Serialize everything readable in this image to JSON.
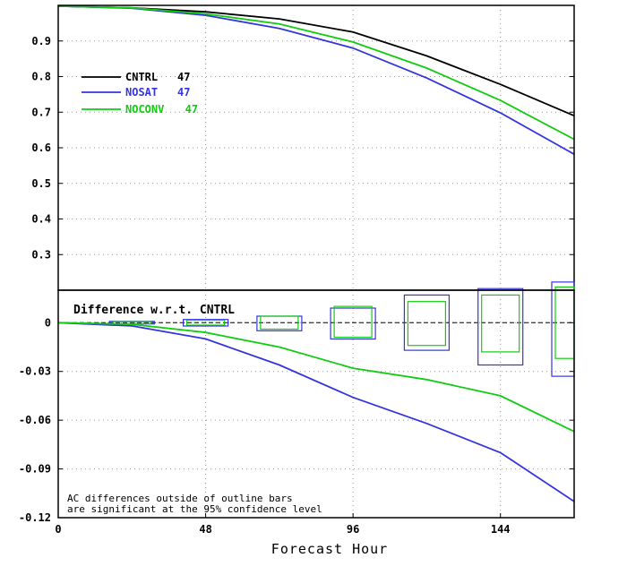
{
  "chart_data": [
    {
      "type": "line",
      "panel": "top",
      "title": "",
      "xlabel": "",
      "ylabel": "",
      "xlim": [
        0,
        168
      ],
      "ylim": [
        0.2,
        1.0
      ],
      "y_ticks": [
        0.3,
        0.4,
        0.5,
        0.6,
        0.7,
        0.8,
        0.9
      ],
      "y_tick_labels": [
        "0.3",
        "0.4",
        "0.5",
        "0.6",
        "0.7",
        "0.8",
        "0.9"
      ],
      "grid": true,
      "legend_position": "upper-left",
      "x": [
        0,
        24,
        48,
        72,
        96,
        120,
        144,
        168
      ],
      "series": [
        {
          "name": "CNTRL",
          "count": "47",
          "color": "#000000",
          "values": [
            0.998,
            0.993,
            0.982,
            0.962,
            0.925,
            0.858,
            0.778,
            0.69
          ]
        },
        {
          "name": "NOSAT",
          "count": "47",
          "color": "#3535dd",
          "values": [
            0.998,
            0.992,
            0.972,
            0.935,
            0.88,
            0.796,
            0.698,
            0.582
          ]
        },
        {
          "name": "NOCONV",
          "count": "47",
          "color": "#11cc11",
          "values": [
            0.998,
            0.993,
            0.976,
            0.948,
            0.897,
            0.824,
            0.733,
            0.624
          ]
        }
      ]
    },
    {
      "type": "line",
      "panel": "bottom",
      "title": "Difference w.r.t. CNTRL",
      "xlabel": "Forecast Hour",
      "ylabel": "",
      "xlim": [
        0,
        168
      ],
      "ylim": [
        -0.12,
        0.02
      ],
      "x_ticks": [
        0,
        48,
        96,
        144
      ],
      "x_tick_labels": [
        "0",
        "48",
        "96",
        "144"
      ],
      "y_ticks": [
        0,
        -0.03,
        -0.06,
        -0.09,
        -0.12
      ],
      "y_tick_labels": [
        "0",
        "-0.03",
        "-0.06",
        "-0.09",
        "-0.12"
      ],
      "grid": true,
      "x": [
        0,
        24,
        48,
        72,
        96,
        120,
        144,
        168
      ],
      "series": [
        {
          "name": "NOSAT",
          "color": "#3535dd",
          "values": [
            0,
            -0.002,
            -0.01,
            -0.026,
            -0.046,
            -0.062,
            -0.08,
            -0.11
          ]
        },
        {
          "name": "NOCONV",
          "color": "#11cc11",
          "values": [
            0,
            -0.001,
            -0.006,
            -0.015,
            -0.028,
            -0.035,
            -0.045,
            -0.067
          ]
        }
      ],
      "significance_bars": [
        {
          "series": "NOSAT",
          "color": "#3535dd",
          "x": 24,
          "low": -0.0008,
          "high": 0.0008
        },
        {
          "series": "NOSAT",
          "color": "#3535dd",
          "x": 48,
          "low": -0.002,
          "high": 0.002
        },
        {
          "series": "NOSAT",
          "color": "#3535dd",
          "x": 72,
          "low": -0.005,
          "high": 0.004
        },
        {
          "series": "NOSAT",
          "color": "#3535dd",
          "x": 96,
          "low": -0.01,
          "high": 0.009
        },
        {
          "series": "NOSAT",
          "color": "#3535dd",
          "x": 120,
          "low": -0.017,
          "high": 0.017
        },
        {
          "series": "NOSAT",
          "color": "#3535dd",
          "x": 144,
          "low": -0.026,
          "high": 0.021
        },
        {
          "series": "NOSAT",
          "color": "#3535dd",
          "x": 168,
          "low": -0.033,
          "high": 0.025
        },
        {
          "series": "NOCONV",
          "color": "#11cc11",
          "x": 24,
          "low": -0.0006,
          "high": 0.0006
        },
        {
          "series": "NOCONV",
          "color": "#11cc11",
          "x": 48,
          "low": -0.0015,
          "high": 0.0015
        },
        {
          "series": "NOCONV",
          "color": "#11cc11",
          "x": 72,
          "low": -0.004,
          "high": 0.004
        },
        {
          "series": "NOCONV",
          "color": "#11cc11",
          "x": 96,
          "low": -0.009,
          "high": 0.01
        },
        {
          "series": "NOCONV",
          "color": "#11cc11",
          "x": 120,
          "low": -0.014,
          "high": 0.013
        },
        {
          "series": "NOCONV",
          "color": "#11cc11",
          "x": 144,
          "low": -0.018,
          "high": 0.017
        },
        {
          "series": "NOCONV",
          "color": "#11cc11",
          "x": 168,
          "low": -0.022,
          "high": 0.022
        }
      ],
      "annotation_lines": [
        "AC differences outside of outline bars",
        "are significant at the 95% confidence level"
      ]
    }
  ]
}
